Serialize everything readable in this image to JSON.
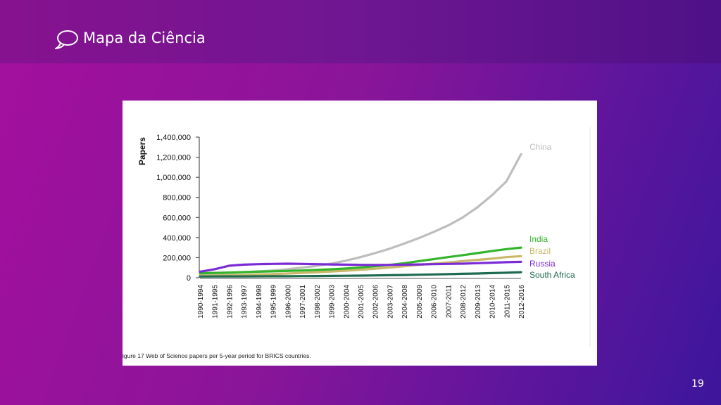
{
  "header": {
    "title": "Mapa da Ciência",
    "icon": "speech-bubble-icon"
  },
  "page_number": "19",
  "figure": {
    "caption": "igure 17 Web of Science papers per 5-year period for BRICS countries."
  },
  "chart_data": {
    "type": "line",
    "ylabel": "Papers",
    "xlabel": "",
    "ylim": [
      0,
      1400000
    ],
    "y_ticks": [
      0,
      200000,
      400000,
      600000,
      800000,
      1000000,
      1200000,
      1400000
    ],
    "y_tick_labels": [
      "0",
      "200,000",
      "400,000",
      "600,000",
      "800,000",
      "1,000,000",
      "1,200,000",
      "1,400,000"
    ],
    "categories": [
      "1990-1994",
      "1991-1995",
      "1992-1996",
      "1993-1997",
      "1994-1998",
      "1995-1999",
      "1996-2000",
      "1997-2001",
      "1998-2002",
      "1999-2003",
      "2000-2004",
      "2001-2005",
      "2002-2006",
      "2003-2007",
      "2004-2008",
      "2005-2009",
      "2006-2010",
      "2007-2011",
      "2008-2012",
      "2009-2013",
      "2010-2014",
      "2011-2015",
      "2012-2016"
    ],
    "legend": "inline-right",
    "series": [
      {
        "name": "China",
        "color": "#bdbdbd",
        "values": [
          35000,
          40000,
          48000,
          55000,
          63000,
          72000,
          85000,
          100000,
          118000,
          140000,
          170000,
          205000,
          245000,
          290000,
          340000,
          395000,
          455000,
          520000,
          600000,
          700000,
          820000,
          960000,
          1230000
        ]
      },
      {
        "name": "India",
        "color": "#33b52b",
        "values": [
          45000,
          48000,
          52000,
          56000,
          60000,
          64000,
          68000,
          72000,
          78000,
          84000,
          92000,
          102000,
          114000,
          128000,
          145000,
          165000,
          185000,
          205000,
          225000,
          245000,
          265000,
          285000,
          300000
        ]
      },
      {
        "name": "Brazil",
        "color": "#c9b86a",
        "values": [
          20000,
          22000,
          25000,
          28000,
          32000,
          36000,
          42000,
          48000,
          55000,
          62000,
          70000,
          80000,
          90000,
          102000,
          115000,
          128000,
          140000,
          152000,
          165000,
          178000,
          190000,
          205000,
          215000
        ]
      },
      {
        "name": "Russia",
        "color": "#7a2bd6",
        "values": [
          60000,
          85000,
          120000,
          130000,
          135000,
          138000,
          140000,
          138000,
          135000,
          132000,
          130000,
          128000,
          127000,
          128000,
          130000,
          132000,
          135000,
          138000,
          140000,
          145000,
          150000,
          155000,
          158000
        ]
      },
      {
        "name": "South Africa",
        "color": "#1f6b4f",
        "values": [
          12000,
          12500,
          13000,
          13500,
          14000,
          14500,
          15000,
          16000,
          17000,
          18000,
          19500,
          21000,
          23000,
          25000,
          27500,
          30000,
          33000,
          36000,
          39000,
          42000,
          46000,
          50000,
          55000
        ]
      }
    ]
  }
}
